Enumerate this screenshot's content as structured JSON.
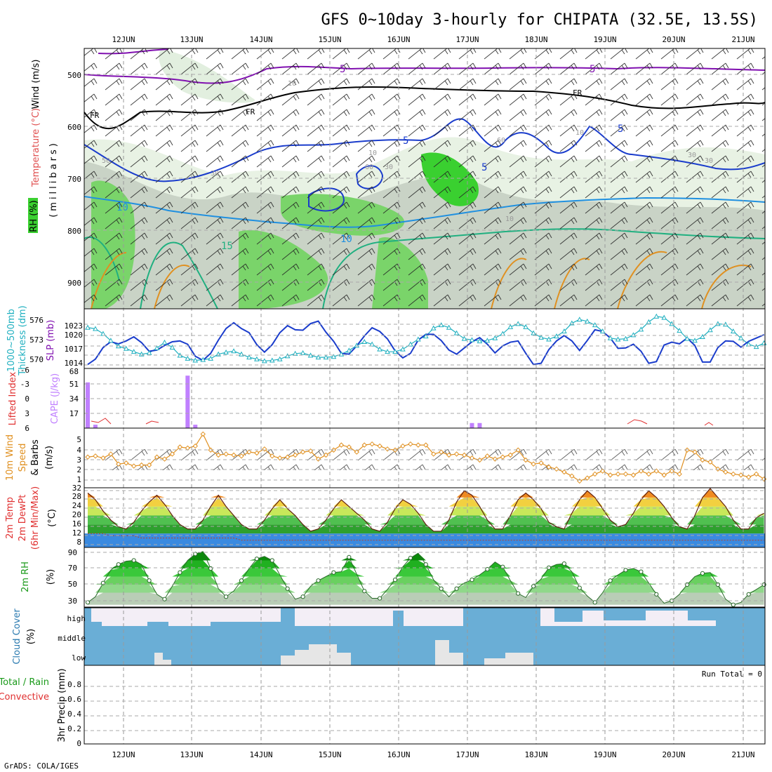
{
  "title": "GFS 0~10day 3-hourly for CHIPATA (32.5E, 13.5S)",
  "dates": [
    "12JUN",
    "13JUN",
    "14JUN",
    "15JUN",
    "16JUN",
    "17JUN",
    "18JUN",
    "19JUN",
    "20JUN",
    "21JUN"
  ],
  "footer": "GrADS: COLA/IGES",
  "run_total": "Run Total = 0",
  "colors": {
    "frame": "#000000",
    "grid": "#9a9a9a",
    "thickness": "#20b0c0",
    "slp": "#1a3ccc",
    "cape": "#c080ff",
    "lifted": "#e03030",
    "wind": "#e09020",
    "rh_line": "#000000",
    "cloud_bg": "#6aaed6",
    "cloud_fill": "#e6e6e6",
    "cloud_high": "#f3eef6",
    "fr": "#000000",
    "temp_purple": "#8010b0",
    "temp_blue": "#1a3ccc",
    "temp_lblue": "#2090e0",
    "temp_teal": "#20b080",
    "temp_orange": "#e09020"
  },
  "panels": {
    "upper_air": {
      "labels": {
        "rh": "RH (%)",
        "temp": "Temperature (°C)",
        "wind": "Wind (m/s)",
        "axis": "(millibars)"
      },
      "ticks": [
        "500",
        "600",
        "700",
        "800",
        "900"
      ],
      "contour_labels": [
        "5",
        "5",
        "FR",
        "FR",
        "FR",
        "5",
        "5",
        "5",
        "10",
        "10",
        "15",
        "10",
        "10",
        "10",
        "30",
        "30",
        "10",
        "30",
        "60",
        "60",
        "50",
        "30"
      ]
    },
    "thickness_slp": {
      "labels": {
        "thick": "1000~500mb",
        "thick2": "Thickness (dm)",
        "slp": "SLP (mb)"
      },
      "thick_ticks": [
        "570",
        "573",
        "576"
      ],
      "slp_ticks": [
        "1014",
        "1017",
        "1020",
        "1023"
      ]
    },
    "cape_li": {
      "labels": {
        "li": "Lifted Index",
        "cape": "CAPE (J/kg)"
      },
      "li_ticks": [
        "6",
        "3",
        "0",
        "-3",
        "-6"
      ],
      "cape_ticks": [
        "17",
        "34",
        "51",
        "68"
      ]
    },
    "wind10m": {
      "labels": {
        "a": "10m Wind",
        "b": "Speed",
        "c": "& Barbs",
        "d": "(m/s)"
      },
      "ticks": [
        "1",
        "2",
        "3",
        "4",
        "5"
      ]
    },
    "temp2m": {
      "labels": {
        "a": "2m Temp",
        "b": "2m DewPt",
        "c": "(6hr Min/Max)",
        "d": "(°C)"
      },
      "ticks": [
        "8",
        "12",
        "16",
        "20",
        "24",
        "28",
        "32"
      ]
    },
    "rh2m": {
      "labels": {
        "a": "2m RH",
        "b": "(%)"
      },
      "ticks": [
        "30",
        "50",
        "70",
        "90"
      ]
    },
    "cloud": {
      "labels": {
        "a": "Cloud Cover",
        "b": "(%)",
        "high": "high",
        "middle": "middle",
        "low": "low"
      }
    },
    "precip": {
      "labels": {
        "a": "Total / Rain",
        "b": "Convective",
        "c": "3hr Precip (mm)"
      },
      "ticks": [
        "0",
        "0.2",
        "0.4",
        "0.6",
        "0.8"
      ]
    }
  },
  "chart_data": [
    {
      "type": "line",
      "title": "1000~500mb Thickness (dm) / SLP (mb)",
      "x_step_hours": 3,
      "series": [
        {
          "name": "Thickness (dm)",
          "values": [
            574.9,
            574.7,
            573.9,
            572.8,
            571.9,
            571.5,
            571.0,
            570.6,
            570.8,
            571.6,
            572.5,
            571.7,
            570.4,
            569.9,
            569.6,
            569.7,
            569.9,
            570.6,
            570.9,
            571.1,
            570.6,
            570.1,
            569.8,
            569.5,
            569.6,
            569.8,
            570.3,
            570.7,
            570.8,
            570.4,
            570.1,
            570.1,
            570.2,
            570.6,
            571.2,
            572.0,
            572.6,
            572.2,
            571.4,
            571.0,
            571.0,
            571.4,
            572.2,
            573.0,
            573.5,
            574.8,
            575.3,
            574.9,
            574.0,
            573.1,
            572.9,
            572.7,
            572.8,
            573.2,
            573.9,
            575.0,
            575.5,
            575.0,
            574.0,
            573.3,
            573.0,
            573.5,
            574.3,
            575.6,
            576.2,
            575.9,
            575.3,
            574.3,
            573.2,
            573.0,
            573.1,
            573.7,
            574.6,
            575.8,
            576.7,
            576.5,
            575.5,
            574.4,
            573.1,
            572.8,
            573.4,
            574.5,
            575.5,
            575.4,
            574.3,
            573.2,
            572.2,
            571.8,
            572.4
          ]
        },
        {
          "name": "SLP (mb)",
          "values": [
            1013.6,
            1014.9,
            1017.7,
            1019.1,
            1018.6,
            1019.3,
            1020.3,
            1018.9,
            1016.8,
            1017.1,
            1018.2,
            1019.1,
            1019.3,
            1018.5,
            1015.6,
            1014.6,
            1016.3,
            1019.5,
            1022.3,
            1023.7,
            1022.3,
            1021.3,
            1018.4,
            1016.6,
            1018.4,
            1021.3,
            1023.0,
            1022.0,
            1021.9,
            1023.5,
            1024.1,
            1021.4,
            1019.2,
            1016.3,
            1016.1,
            1018.1,
            1020.5,
            1022.5,
            1021.6,
            1019.8,
            1016.9,
            1015.2,
            1016.3,
            1019.5,
            1020.9,
            1020.9,
            1019.4,
            1017.1,
            1016.1,
            1017.6,
            1019.1,
            1020.1,
            1018.5,
            1016.4,
            1018.1,
            1019.0,
            1019.3,
            1016.3,
            1013.6,
            1013.9,
            1017.2,
            1019.3,
            1020.6,
            1019.3,
            1017.0,
            1019.4,
            1022.0,
            1021.6,
            1020.0,
            1017.5,
            1017.6,
            1018.5,
            1016.8,
            1013.9,
            1014.3,
            1018.3,
            1019.0,
            1018.6,
            1020.0,
            1018.2,
            1014.2,
            1014.2,
            1017.7,
            1019.3,
            1019.2,
            1017.8,
            1019.2,
            1020.0,
            1020.8
          ]
        }
      ]
    },
    {
      "type": "bar",
      "title": "Lifted Index / CAPE (J/kg)",
      "series": [
        {
          "name": "CAPE (J/kg)",
          "values": [
            54,
            4,
            0,
            0,
            0,
            0,
            0,
            0,
            0,
            0,
            0,
            0,
            0,
            62,
            4,
            0,
            0,
            0,
            0,
            0,
            0,
            0,
            0,
            0,
            0,
            0,
            0,
            0,
            0,
            0,
            0,
            0,
            0,
            0,
            0,
            0,
            0,
            0,
            0,
            0,
            0,
            0,
            0,
            0,
            0,
            0,
            0,
            0,
            0,
            0,
            6,
            6,
            0,
            0,
            0,
            0,
            0,
            0,
            0,
            0,
            0,
            0,
            0,
            0,
            0,
            0,
            0,
            0,
            0,
            0,
            0,
            0,
            0,
            0,
            0,
            0,
            0,
            0,
            0,
            0,
            0,
            0,
            0,
            0,
            0,
            0,
            0,
            0,
            0
          ]
        }
      ],
      "ylim": [
        0,
        68
      ]
    },
    {
      "type": "line",
      "title": "10m Wind Speed & Barbs (m/s)",
      "series": [
        {
          "name": "Speed (m/s)",
          "values": [
            3.3,
            3.4,
            3.2,
            3.6,
            2.6,
            2.7,
            2.4,
            2.5,
            2.5,
            3.3,
            3.1,
            3.6,
            4.3,
            4.2,
            4.4,
            5.6,
            4.0,
            3.5,
            3.6,
            3.5,
            3.4,
            3.8,
            3.7,
            4.1,
            3.4,
            3.2,
            3.3,
            3.5,
            3.8,
            3.9,
            3.1,
            3.5,
            4.0,
            4.5,
            4.3,
            3.8,
            4.5,
            4.6,
            4.4,
            4.1,
            4.0,
            4.4,
            4.6,
            4.5,
            4.5,
            3.6,
            3.8,
            3.5,
            3.6,
            3.5,
            3.2,
            3.0,
            3.4,
            3.1,
            3.3,
            3.5,
            4.0,
            3.0,
            2.6,
            2.7,
            2.3,
            2.1,
            1.8,
            1.4,
            0.9,
            1.2,
            1.6,
            1.9,
            1.5,
            1.6,
            1.6,
            1.5,
            1.9,
            1.6,
            1.9,
            1.5,
            1.9,
            1.6,
            4.0,
            3.8,
            3.0,
            2.8,
            2.1,
            1.8,
            1.6,
            1.5,
            1.3,
            1.6,
            1.1
          ]
        }
      ],
      "ylim": [
        0.5,
        6
      ]
    },
    {
      "type": "area",
      "title": "2m Temp / 2m DewPt (°C)",
      "series": [
        {
          "name": "2m Temp (°C)",
          "values": [
            30,
            27,
            22,
            18,
            15,
            14,
            17,
            22,
            26,
            29,
            25,
            20,
            16,
            14,
            14,
            18,
            24,
            29,
            24,
            20,
            16,
            14,
            14,
            18,
            23,
            27,
            23,
            20,
            16,
            13,
            14,
            18,
            23,
            27,
            24,
            21,
            18,
            14,
            13,
            17,
            23,
            27,
            25,
            21,
            16,
            13,
            13,
            18,
            26,
            31,
            29,
            24,
            18,
            14,
            14,
            20,
            27,
            30,
            27,
            23,
            17,
            15,
            14,
            21,
            27,
            31,
            28,
            23,
            18,
            15,
            16,
            21,
            27,
            31,
            28,
            24,
            19,
            15,
            14,
            20,
            28,
            32,
            28,
            24,
            18,
            14,
            14,
            19,
            21
          ]
        },
        {
          "name": "2m DewPt (°C)",
          "values": [
            12,
            12,
            12,
            11,
            11,
            11,
            11,
            10,
            10,
            10,
            10,
            10,
            10,
            10,
            10,
            10,
            10,
            10,
            10,
            10,
            9,
            9,
            9,
            9,
            9,
            9,
            9,
            9,
            9,
            9,
            9,
            9,
            9,
            9,
            9,
            9,
            9,
            9,
            9,
            9,
            9,
            9,
            9,
            9,
            9,
            9,
            9,
            9,
            9,
            9,
            9,
            9,
            9,
            9,
            9,
            9,
            9,
            9,
            9,
            9,
            9,
            9,
            9,
            9,
            9,
            9,
            9,
            9,
            9,
            9,
            9,
            9,
            9,
            9,
            9,
            9,
            9,
            9,
            9,
            9,
            9,
            9,
            9,
            9,
            9,
            9,
            9,
            9,
            9
          ]
        }
      ],
      "ylim": [
        4,
        34
      ]
    },
    {
      "type": "area",
      "title": "2m RH (%)",
      "series": [
        {
          "name": "2m RH (%)",
          "values": [
            28,
            35,
            52,
            68,
            75,
            79,
            80,
            75,
            55,
            38,
            32,
            48,
            65,
            80,
            88,
            91,
            70,
            45,
            35,
            42,
            55,
            70,
            82,
            85,
            80,
            62,
            45,
            32,
            35,
            48,
            55,
            60,
            65,
            66,
            84,
            63,
            42,
            33,
            33,
            44,
            56,
            72,
            83,
            89,
            75,
            56,
            45,
            35,
            45,
            52,
            56,
            62,
            69,
            78,
            72,
            55,
            39,
            34,
            48,
            57,
            71,
            75,
            76,
            66,
            46,
            36,
            28,
            40,
            55,
            62,
            68,
            70,
            66,
            52,
            38,
            27,
            30,
            38,
            50,
            60,
            64,
            65,
            50,
            32,
            25,
            28,
            38,
            44,
            50
          ]
        }
      ],
      "ylim": [
        25,
        95
      ]
    },
    {
      "type": "bar",
      "title": "3hr Precip (mm)",
      "series": [
        {
          "name": "Total / Rain",
          "values": []
        },
        {
          "name": "Convective",
          "values": []
        }
      ],
      "ylim": [
        0,
        1
      ]
    }
  ]
}
